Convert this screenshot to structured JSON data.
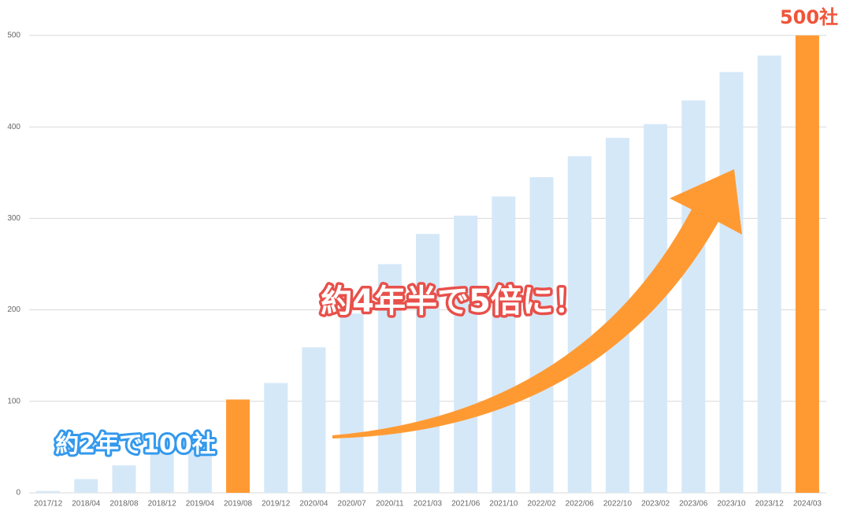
{
  "chart_data": {
    "type": "bar",
    "categories": [
      "2017/12",
      "2018/04",
      "2018/08",
      "2018/12",
      "2019/04",
      "2019/08",
      "2019/12",
      "2020/04",
      "2020/07",
      "2020/11",
      "2021/03",
      "2021/06",
      "2021/10",
      "2022/02",
      "2022/06",
      "2022/10",
      "2023/02",
      "2023/06",
      "2023/10",
      "2023/12",
      "2024/03"
    ],
    "values": [
      2,
      15,
      30,
      46,
      54,
      102,
      120,
      159,
      196,
      250,
      283,
      303,
      324,
      345,
      368,
      388,
      403,
      429,
      460,
      478,
      500
    ],
    "colors": [
      "#d5e8f8",
      "#d5e8f8",
      "#d5e8f8",
      "#d5e8f8",
      "#d5e8f8",
      "#ff9a33",
      "#d5e8f8",
      "#d5e8f8",
      "#d5e8f8",
      "#d5e8f8",
      "#d5e8f8",
      "#d5e8f8",
      "#d5e8f8",
      "#d5e8f8",
      "#d5e8f8",
      "#d5e8f8",
      "#d5e8f8",
      "#d5e8f8",
      "#d5e8f8",
      "#d5e8f8",
      "#ff9a33"
    ],
    "ylim": [
      0,
      500
    ],
    "yticks": [
      0,
      100,
      200,
      300,
      400,
      500
    ],
    "grid": true,
    "annotations": [
      "500社",
      "約2年で100社",
      "約4年半で5倍に！"
    ]
  }
}
